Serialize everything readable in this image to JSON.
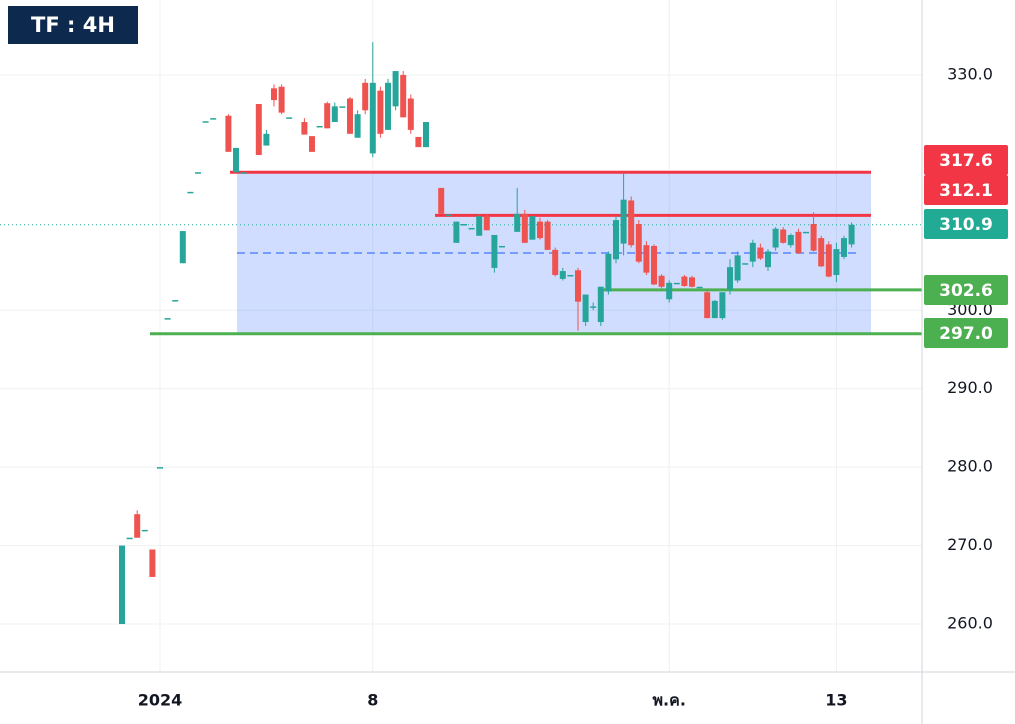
{
  "chart_data": {
    "type": "candlestick",
    "title": "TF : 4H",
    "categories": [
      null,
      null,
      null,
      null,
      null,
      "2024",
      null,
      null,
      null,
      null,
      null,
      null,
      null,
      null,
      null,
      null,
      null,
      null,
      null,
      null,
      null,
      null,
      null,
      null,
      null,
      null,
      null,
      null,
      null,
      null,
      null,
      null,
      null,
      "8",
      null,
      null,
      null,
      null,
      null,
      null,
      null,
      null,
      null,
      null,
      null,
      null,
      null,
      null,
      null,
      null,
      null,
      null,
      null,
      null,
      null,
      null,
      null,
      null,
      null,
      null,
      null,
      null,
      null,
      null,
      null,
      null,
      null,
      null,
      null,
      null,
      null,
      null,
      "พ.ค.",
      null,
      null,
      null,
      null,
      null,
      null,
      null,
      null,
      null,
      null,
      null,
      null,
      null,
      null,
      null,
      null,
      null,
      null,
      null,
      null,
      null,
      "13",
      null,
      null
    ],
    "ohlc": [
      [
        260,
        270,
        260,
        270
      ],
      [
        271,
        271,
        271,
        271
      ],
      [
        274,
        274.5,
        271,
        271
      ],
      [
        272,
        272,
        272,
        272
      ],
      [
        269.5,
        269.5,
        266,
        266
      ],
      [
        280,
        280,
        280,
        280
      ],
      [
        299,
        299,
        299,
        299
      ],
      [
        301.3,
        301.3,
        301.3,
        301.3
      ],
      [
        306,
        310.1,
        306,
        310.1
      ],
      [
        315.1,
        315.1,
        315.1,
        315.1
      ],
      [
        317.6,
        317.6,
        317.6,
        317.6
      ],
      [
        324.1,
        324.1,
        324.1,
        324.1
      ],
      [
        324.5,
        324.5,
        324.5,
        324.5
      ],
      null,
      [
        324.8,
        325,
        320.2,
        320.2
      ],
      [
        317.6,
        320.7,
        317.6,
        320.7
      ],
      [
        317.6,
        317.6,
        317.6,
        317.6
      ],
      null,
      [
        326.3,
        326.3,
        319.8,
        319.8
      ],
      [
        321,
        323,
        321,
        322.5
      ],
      [
        328.3,
        328.8,
        326,
        326.8
      ],
      [
        328.5,
        328.8,
        325,
        325.2
      ],
      [
        324.6,
        324.6,
        324.6,
        324.6
      ],
      null,
      [
        324,
        324.5,
        322.4,
        322.4
      ],
      [
        322.2,
        322.2,
        320.2,
        320.2
      ],
      [
        323.5,
        323.5,
        323.5,
        323.5
      ],
      [
        326.4,
        326.6,
        323.2,
        323.2
      ],
      [
        324,
        326.5,
        324,
        326
      ],
      [
        326,
        326,
        326,
        326
      ],
      [
        327,
        327.2,
        322.5,
        322.5
      ],
      [
        322,
        325.5,
        322,
        325
      ],
      [
        329,
        329.5,
        325,
        325.5
      ],
      [
        320,
        334.2,
        319.5,
        329
      ],
      [
        328,
        328.5,
        322,
        322.5
      ],
      [
        323,
        329.5,
        323,
        329
      ],
      [
        326,
        330.5,
        325.5,
        330.5
      ],
      [
        330,
        330.5,
        324.6,
        324.6
      ],
      [
        327,
        327.5,
        322.5,
        323
      ],
      [
        322.1,
        322.1,
        320.8,
        320.8
      ],
      [
        320.8,
        324,
        320.8,
        324
      ],
      null,
      [
        315.6,
        315.6,
        312.3,
        312.3
      ],
      [
        312.2,
        312.2,
        312.2,
        312.2
      ],
      [
        308.6,
        311.3,
        308.6,
        311.3
      ],
      [
        311,
        311,
        311,
        311
      ],
      [
        310.5,
        310.5,
        310.5,
        310.5
      ],
      [
        309.5,
        312.2,
        309.5,
        312
      ],
      [
        312,
        312.3,
        310.2,
        310.2
      ],
      [
        305.4,
        309.6,
        304.8,
        309.6
      ],
      [
        308.2,
        308.2,
        308.2,
        308.2
      ],
      null,
      [
        310,
        315.6,
        310,
        312.3
      ],
      [
        312.3,
        312.8,
        308.6,
        308.6
      ],
      [
        309,
        312,
        309,
        312
      ],
      [
        311.3,
        311.8,
        309,
        309.2
      ],
      [
        311.3,
        311.5,
        307.7,
        307.7
      ],
      [
        307.7,
        308,
        304.3,
        304.5
      ],
      [
        304,
        305.4,
        303.8,
        305
      ],
      [
        304.5,
        304.5,
        304.5,
        304.5
      ],
      [
        305.1,
        305.4,
        297.4,
        301.1
      ],
      [
        298.5,
        302,
        298,
        302
      ],
      [
        300.5,
        301,
        300,
        300.5
      ],
      [
        298.5,
        303,
        298,
        303
      ],
      [
        302.4,
        307.5,
        302,
        307.2
      ],
      [
        306.5,
        312,
        306,
        311.5
      ],
      [
        308.5,
        317.6,
        307,
        314.1
      ],
      [
        314,
        314.5,
        308,
        308.3
      ],
      [
        311,
        311.5,
        306,
        306.2
      ],
      [
        308.3,
        308.8,
        304.5,
        304.8
      ],
      [
        308.2,
        308.4,
        303.2,
        303.3
      ],
      [
        304.4,
        304.6,
        302.8,
        303
      ],
      [
        301.4,
        303.8,
        301,
        303.5
      ],
      [
        303.5,
        303.5,
        303.5,
        303.5
      ],
      [
        304.3,
        304.5,
        303,
        303.1
      ],
      [
        304.2,
        304.4,
        302.9,
        303
      ],
      [
        303,
        303,
        303,
        303
      ],
      [
        302.3,
        302.5,
        299,
        299
      ],
      [
        299,
        301.3,
        299,
        301.2
      ],
      [
        299,
        302.3,
        298.8,
        302.3
      ],
      [
        302.6,
        306.5,
        302,
        305.5
      ],
      [
        303.8,
        307.5,
        303.5,
        307
      ],
      [
        306,
        306,
        306,
        306
      ],
      [
        306.2,
        309,
        305.5,
        308.6
      ],
      [
        308,
        308.5,
        306.4,
        306.6
      ],
      [
        305.5,
        307.8,
        305,
        307.5
      ],
      [
        308,
        310.6,
        307.6,
        310.4
      ],
      [
        310.3,
        310.6,
        308.5,
        308.6
      ],
      [
        308.3,
        309.8,
        308,
        309.6
      ],
      [
        310,
        310.4,
        307.2,
        307.3
      ],
      [
        310,
        310,
        310,
        310
      ],
      [
        311,
        312.5,
        307.5,
        307.6
      ],
      [
        309.2,
        309.5,
        305.5,
        305.6
      ],
      [
        308.4,
        308.8,
        304.2,
        304.3
      ],
      [
        304.5,
        308.6,
        303.6,
        307.8
      ],
      [
        306.8,
        309.5,
        306.5,
        309.2
      ],
      [
        308.4,
        311.2,
        308,
        310.9
      ]
    ],
    "up_color": "#26a69a",
    "down_color": "#ef5350",
    "ylim": [
      253.88,
      339.56
    ],
    "yticks": [
      {
        "value": 260,
        "label": "260.0"
      },
      {
        "value": 270,
        "label": "270.0"
      },
      {
        "value": 280,
        "label": "280.0"
      },
      {
        "value": 290,
        "label": "290.0"
      },
      {
        "value": 300,
        "label": "300.0"
      },
      {
        "value": 330,
        "label": "330.0"
      }
    ],
    "grid": true,
    "levels": [
      {
        "value": 317.6,
        "label": "317.6",
        "color": "#f23645"
      },
      {
        "value": 312.1,
        "label": "312.1",
        "color": "#f23645"
      },
      {
        "value": 310.9,
        "label": "310.9",
        "color": "#22ab94"
      },
      {
        "value": 302.6,
        "label": "302.6",
        "color": "#4caf50"
      },
      {
        "value": 297,
        "label": "297.0",
        "color": "#4caf50"
      }
    ],
    "range_color": "#2962ff"
  }
}
